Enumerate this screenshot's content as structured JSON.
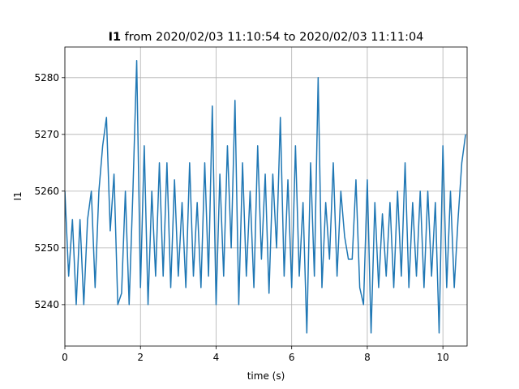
{
  "chart_data": {
    "type": "line",
    "title_bold": "I1",
    "title": "from 2020/02/03 11:10:54 to 2020/02/03 11:11:04",
    "x_label": "time (s)",
    "y_label": "I1",
    "xlim": [
      0,
      10.64
    ],
    "ylim": [
      5232.7,
      5285.4
    ],
    "xticks": [
      0,
      2,
      4,
      6,
      8,
      10
    ],
    "yticks": [
      5240,
      5250,
      5260,
      5270,
      5280
    ],
    "grid": true,
    "x": [
      0,
      0.1,
      0.2,
      0.3,
      0.4,
      0.5,
      0.6,
      0.7,
      0.8,
      0.9,
      1,
      1.1,
      1.2,
      1.3,
      1.4,
      1.5,
      1.6,
      1.7,
      1.8,
      1.9,
      2,
      2.1,
      2.2,
      2.3,
      2.4,
      2.5,
      2.6,
      2.7,
      2.8,
      2.9,
      3,
      3.1,
      3.2,
      3.3,
      3.4,
      3.5,
      3.6,
      3.7,
      3.8,
      3.9,
      4,
      4.1,
      4.2,
      4.3,
      4.4,
      4.5,
      4.6,
      4.7,
      4.8,
      4.9,
      5,
      5.1,
      5.2,
      5.3,
      5.4,
      5.5,
      5.6,
      5.7,
      5.8,
      5.9,
      6,
      6.1,
      6.2,
      6.3,
      6.4,
      6.5,
      6.6,
      6.7,
      6.8,
      6.9,
      7,
      7.1,
      7.2,
      7.3,
      7.4,
      7.5,
      7.6,
      7.7,
      7.8,
      7.9,
      8,
      8.1,
      8.2,
      8.3,
      8.4,
      8.5,
      8.6,
      8.7,
      8.8,
      8.9,
      9,
      9.1,
      9.2,
      9.3,
      9.4,
      9.5,
      9.6,
      9.7,
      9.8,
      9.9,
      10,
      10.1,
      10.2,
      10.3,
      10.4,
      10.5,
      10.6
    ],
    "series": [
      {
        "color": "#1f77b4",
        "values": [
          5260,
          5245,
          5255,
          5240,
          5255,
          5240,
          5255,
          5260,
          5243,
          5260,
          5268,
          5273,
          5253,
          5263,
          5240,
          5242,
          5260,
          5240,
          5260,
          5283,
          5243,
          5268,
          5240,
          5260,
          5245,
          5265,
          5245,
          5265,
          5243,
          5262,
          5245,
          5258,
          5243,
          5265,
          5245,
          5258,
          5243,
          5265,
          5245,
          5275,
          5240,
          5263,
          5245,
          5268,
          5250,
          5276,
          5240,
          5265,
          5245,
          5260,
          5243,
          5268,
          5248,
          5263,
          5242,
          5263,
          5250,
          5273,
          5245,
          5262,
          5243,
          5268,
          5245,
          5258,
          5235,
          5265,
          5245,
          5280,
          5243,
          5258,
          5248,
          5265,
          5245,
          5260,
          5252,
          5248,
          5248,
          5262,
          5243,
          5240,
          5262,
          5235,
          5258,
          5243,
          5256,
          5245,
          5258,
          5243,
          5260,
          5245,
          5265,
          5243,
          5258,
          5245,
          5260,
          5243,
          5260,
          5245,
          5258,
          5235,
          5268,
          5243,
          5260,
          5243,
          5255,
          5265,
          5270
        ]
      }
    ]
  }
}
